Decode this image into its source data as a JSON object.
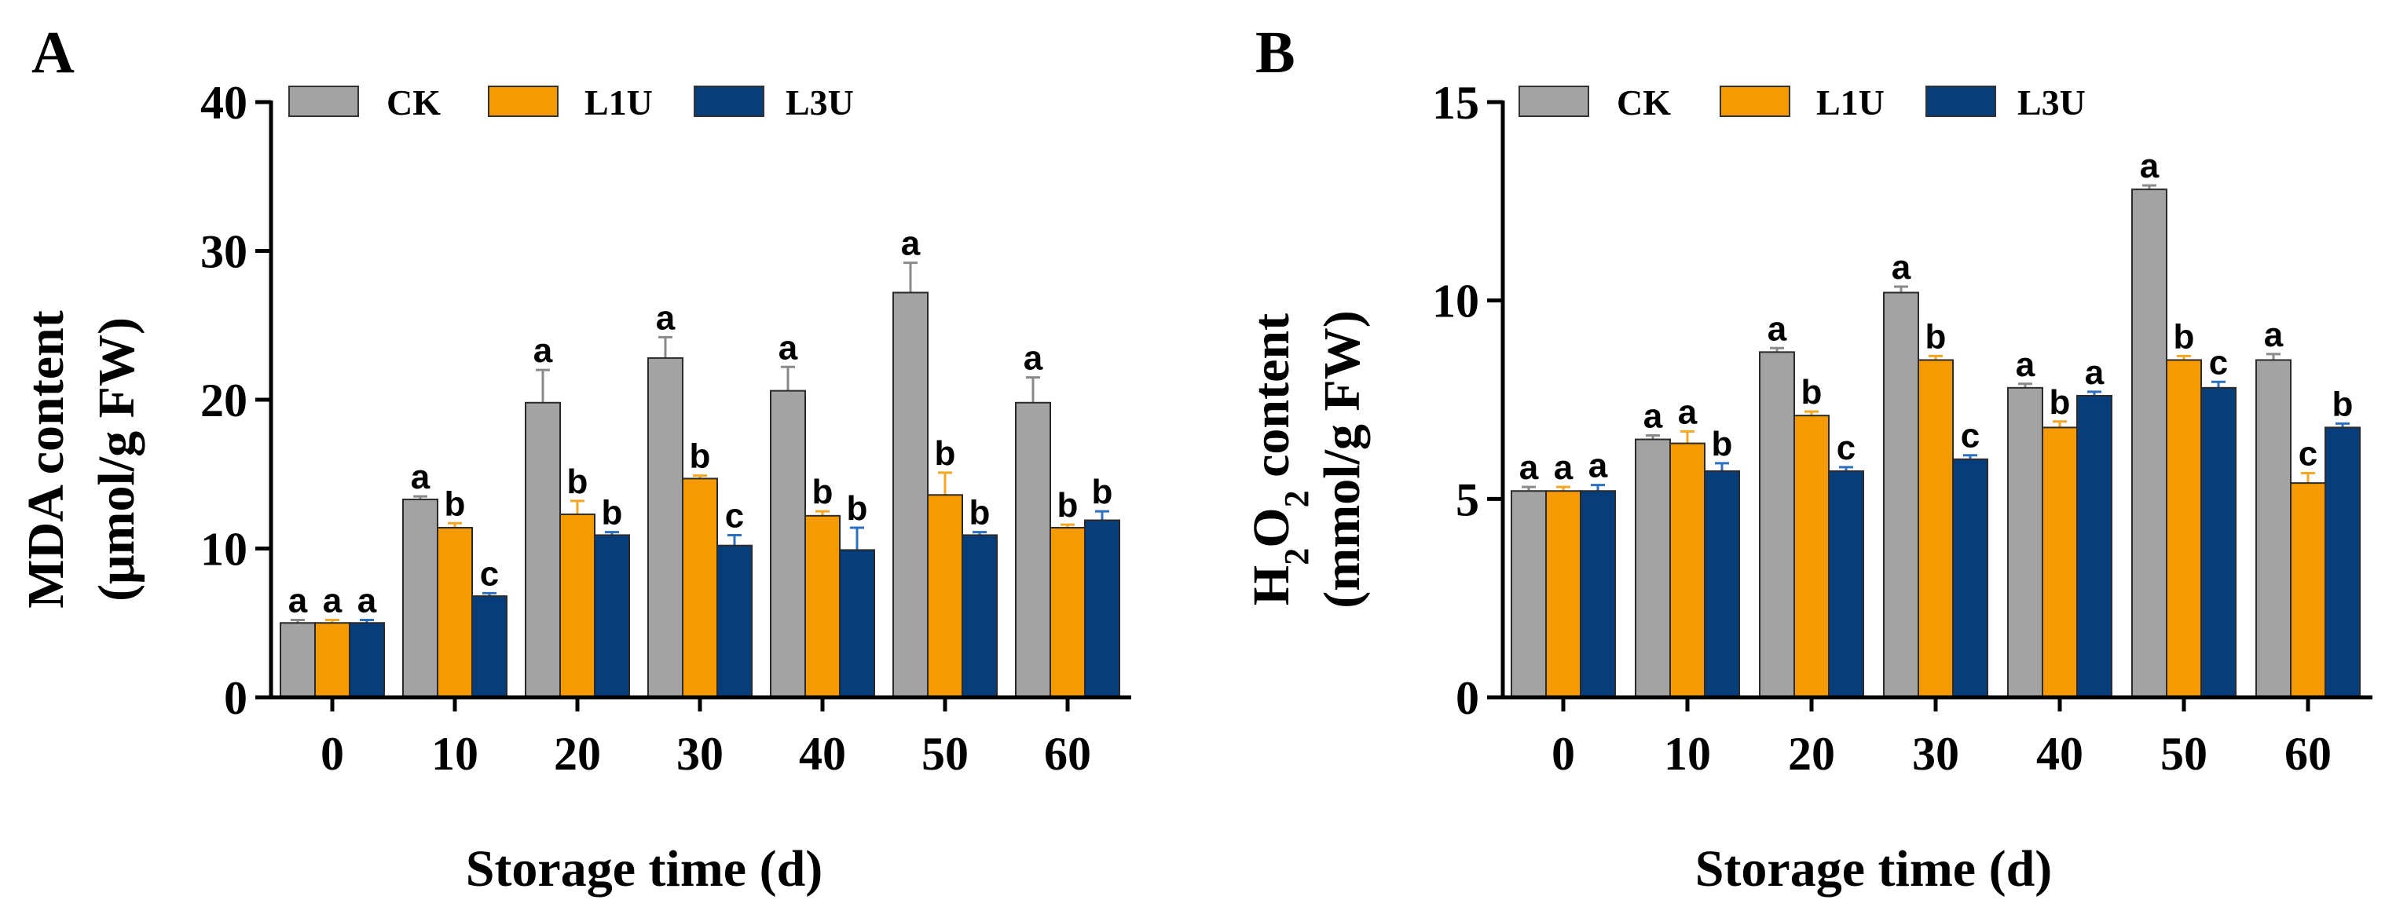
{
  "chart_data": [
    {
      "type": "bar",
      "panel_label": "A",
      "title": "",
      "xlabel": "Storage time (d)",
      "ylabel_line1": "MDA content",
      "ylabel_line2": "(μmol/g FW)",
      "ylim": [
        0,
        40
      ],
      "yticks": [
        0,
        10,
        20,
        30,
        40
      ],
      "grid": false,
      "legend_position": "top",
      "categories": [
        "0",
        "10",
        "20",
        "30",
        "40",
        "50",
        "60"
      ],
      "series": [
        {
          "name": "CK",
          "color": "#a3a3a3",
          "values": [
            5.0,
            13.3,
            19.8,
            22.8,
            20.6,
            27.2,
            19.8
          ],
          "errors": [
            0.2,
            0.2,
            2.2,
            1.4,
            1.6,
            2.0,
            1.7
          ],
          "labels": [
            "a",
            "a",
            "a",
            "a",
            "a",
            "a",
            "a"
          ]
        },
        {
          "name": "L1U",
          "color": "#f59a00",
          "values": [
            5.0,
            11.4,
            12.3,
            14.7,
            12.2,
            13.6,
            11.4
          ],
          "errors": [
            0.2,
            0.3,
            0.9,
            0.2,
            0.3,
            1.5,
            0.2
          ],
          "labels": [
            "a",
            "b",
            "b",
            "b",
            "b",
            "b",
            "b"
          ]
        },
        {
          "name": "L3U",
          "color": "#063d7a",
          "values": [
            5.0,
            6.8,
            10.9,
            10.2,
            9.9,
            10.9,
            11.9
          ],
          "errors": [
            0.2,
            0.2,
            0.2,
            0.7,
            1.5,
            0.2,
            0.6
          ],
          "labels": [
            "a",
            "c",
            "b",
            "c",
            "b",
            "b",
            "b"
          ]
        }
      ]
    },
    {
      "type": "bar",
      "panel_label": "B",
      "title": "",
      "xlabel": "Storage time (d)",
      "ylabel_line1_main": "H",
      "ylabel_line1_sub1": "2",
      "ylabel_line1_mid": "O",
      "ylabel_line1_sub2": "2",
      "ylabel_line1_rest": " content",
      "ylabel_line2": "(mmol/g FW)",
      "ylim": [
        0,
        15
      ],
      "yticks": [
        0,
        5,
        10,
        15
      ],
      "grid": false,
      "legend_position": "top",
      "categories": [
        "0",
        "10",
        "20",
        "30",
        "40",
        "50",
        "60"
      ],
      "series": [
        {
          "name": "CK",
          "color": "#a3a3a3",
          "values": [
            5.2,
            6.5,
            8.7,
            10.2,
            7.8,
            12.8,
            8.5
          ],
          "errors": [
            0.1,
            0.1,
            0.1,
            0.15,
            0.1,
            0.1,
            0.15
          ],
          "labels": [
            "a",
            "a",
            "a",
            "a",
            "a",
            "a",
            "a"
          ]
        },
        {
          "name": "L1U",
          "color": "#f59a00",
          "values": [
            5.2,
            6.4,
            7.1,
            8.5,
            6.8,
            8.5,
            5.4
          ],
          "errors": [
            0.1,
            0.3,
            0.1,
            0.1,
            0.15,
            0.1,
            0.25
          ],
          "labels": [
            "a",
            "a",
            "b",
            "b",
            "b",
            "b",
            "c"
          ]
        },
        {
          "name": "L3U",
          "color": "#063d7a",
          "values": [
            5.2,
            5.7,
            5.7,
            6.0,
            7.6,
            7.8,
            6.8
          ],
          "errors": [
            0.15,
            0.2,
            0.1,
            0.1,
            0.1,
            0.15,
            0.1
          ],
          "labels": [
            "a",
            "b",
            "c",
            "c",
            "a",
            "c",
            "b"
          ]
        }
      ]
    }
  ]
}
